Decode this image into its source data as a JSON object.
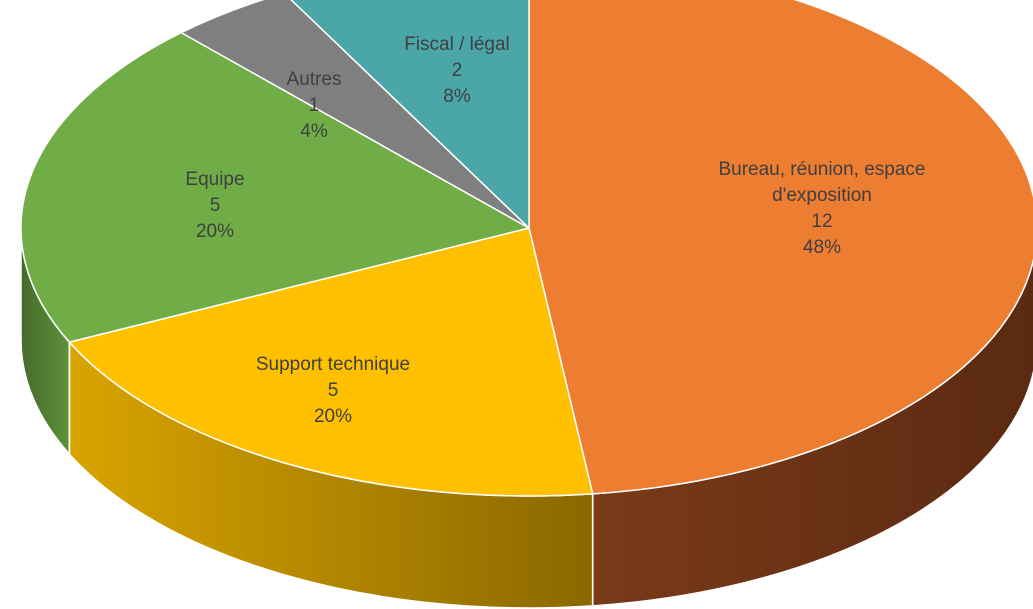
{
  "chart_data": {
    "type": "pie",
    "style": "3d",
    "title": "",
    "legend": "none",
    "slices": [
      {
        "name": "Bureau, réunion, espace d'exposition",
        "label_lines": [
          "Bureau, réunion, espace",
          "d'exposition"
        ],
        "value": 12,
        "percent_label": "48%",
        "color": "#ED7D31",
        "side_color": "#6E3316"
      },
      {
        "name": "Support technique",
        "label_lines": [
          "Support technique"
        ],
        "value": 5,
        "percent_label": "20%",
        "color": "#FFC000",
        "side_color": "#8A6800"
      },
      {
        "name": "Equipe",
        "label_lines": [
          "Equipe"
        ],
        "value": 5,
        "percent_label": "20%",
        "color": "#70AD47",
        "side_color": "#466B2C"
      },
      {
        "name": "Autres",
        "label_lines": [
          "Autres"
        ],
        "value": 1,
        "percent_label": "4%",
        "color": "#7F7F7F",
        "side_color": "#4A4A4A"
      },
      {
        "name": "Fiscal / légal",
        "label_lines": [
          "Fiscal / légal"
        ],
        "value": 2,
        "percent_label": "8%",
        "color": "#4BA6A8",
        "side_color": "#2E6668"
      }
    ]
  }
}
